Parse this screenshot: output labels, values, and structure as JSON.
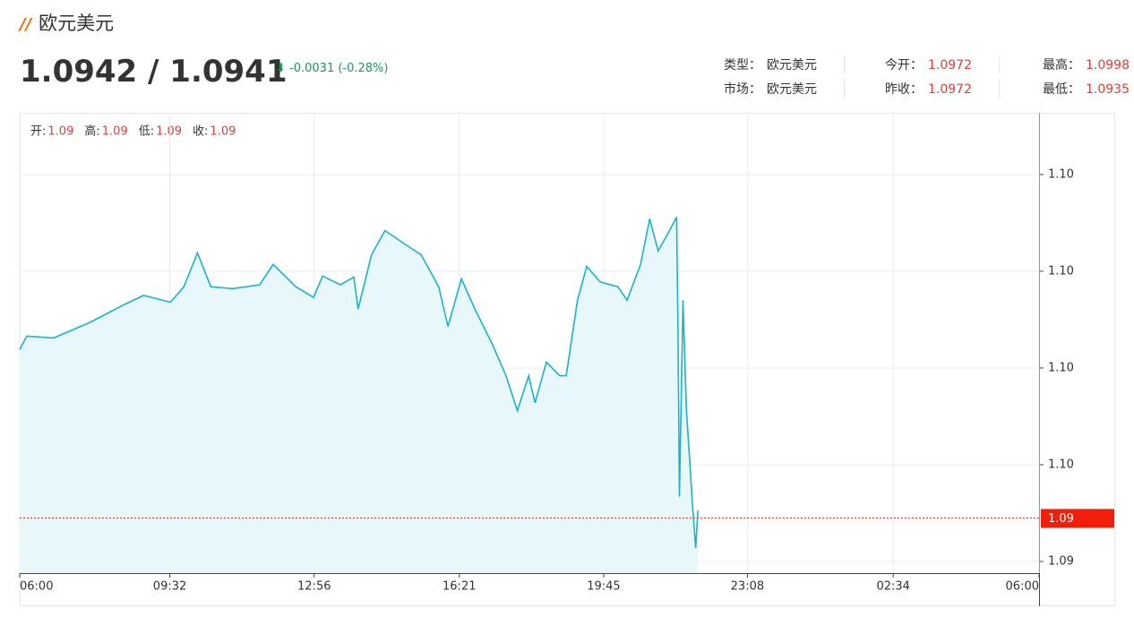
{
  "header": {
    "title": "欧元美元",
    "price": "1.0942 / 1.0941",
    "change": "-0.0031 (-0.28%)"
  },
  "stats": [
    [
      {
        "label": "类型：",
        "value": "欧元美元"
      },
      {
        "label": "今开：",
        "value": "1.0972"
      },
      {
        "label": "最高：",
        "value": "1.0998"
      }
    ],
    [
      {
        "label": "市场：",
        "value": "欧元美元"
      },
      {
        "label": "昨收：",
        "value": "1.0972"
      },
      {
        "label": "最低：",
        "value": "1.0935"
      }
    ]
  ],
  "chart_data": {
    "type": "line",
    "ohlc": [
      {
        "label": "开:",
        "value": "1.09"
      },
      {
        "label": "高:",
        "value": "1.09"
      },
      {
        "label": "低:",
        "value": "1.09"
      },
      {
        "label": "收:",
        "value": "1.09"
      }
    ],
    "x": [
      0,
      10,
      48,
      99,
      149,
      175,
      213,
      232,
      251,
      270,
      301,
      339,
      358,
      390,
      415,
      428,
      453,
      472,
      478,
      497,
      516,
      542,
      567,
      592,
      605,
      624,
      643,
      668,
      687,
      703,
      719,
      728,
      744,
      763,
      772,
      788,
      801,
      820,
      845,
      858,
      877,
      890,
      902,
      915,
      928,
      930,
      932,
      937,
      942,
      947,
      950,
      955,
      958
    ],
    "series": [
      {
        "color": "#1ab3cc",
        "values": [
          1.09619,
          1.09633,
          1.09631,
          1.09647,
          1.09666,
          1.09675,
          1.09668,
          1.09684,
          1.09719,
          1.09684,
          1.09682,
          1.09686,
          1.09707,
          1.09684,
          1.09673,
          1.09695,
          1.09686,
          1.09694,
          1.09661,
          1.09717,
          1.09742,
          1.09729,
          1.09717,
          1.09684,
          1.09643,
          1.09692,
          1.09661,
          1.09624,
          1.09592,
          1.09556,
          1.09592,
          1.09564,
          1.09606,
          1.09592,
          1.09592,
          1.0967,
          1.09705,
          1.09689,
          1.09684,
          1.0967,
          1.09707,
          1.09754,
          1.09721,
          1.09738,
          1.09756,
          1.09629,
          1.09467,
          1.0967,
          1.09555,
          1.09499,
          1.09462,
          1.09414,
          1.09453
        ]
      }
    ],
    "xlim": [
      0,
      1440
    ],
    "xticks": [
      {
        "value": 0,
        "label": "06:00"
      },
      {
        "value": 212,
        "label": "09:32"
      },
      {
        "value": 416,
        "label": "12:56"
      },
      {
        "value": 621,
        "label": "16:21"
      },
      {
        "value": 825,
        "label": "19:45"
      },
      {
        "value": 1028,
        "label": "23:08"
      },
      {
        "value": 1234,
        "label": "02:34"
      },
      {
        "value": 1440,
        "label": "06:00"
      }
    ],
    "ylim": [
      1.09388,
      1.0986
    ],
    "yticks": [
      {
        "value": 1.094,
        "label": "1.09"
      },
      {
        "value": 1.095,
        "label": "1.10"
      },
      {
        "value": 1.096,
        "label": "1.10"
      },
      {
        "value": 1.097,
        "label": "1.10"
      },
      {
        "value": 1.098,
        "label": "1.10"
      }
    ],
    "current": {
      "value": 1.09445,
      "label": "1.09"
    },
    "grid": true
  }
}
